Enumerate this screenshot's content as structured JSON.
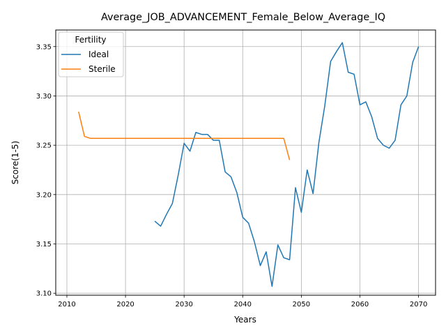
{
  "chart_data": {
    "type": "line",
    "title": "Average_JOB_ADVANCEMENT_Female_Below_Average_IQ",
    "xlabel": "Years",
    "ylabel": "Score(1-5)",
    "xlim": [
      2008.1,
      2072.9
    ],
    "ylim": [
      3.098,
      3.3668
    ],
    "x_ticks": [
      2010,
      2020,
      2030,
      2040,
      2050,
      2060,
      2070
    ],
    "y_ticks": [
      3.1,
      3.15,
      3.2,
      3.25,
      3.3,
      3.35
    ],
    "grid": true,
    "legend": {
      "title": "Fertility",
      "placement": "top-left"
    },
    "series": [
      {
        "name": "Ideal",
        "color": "#1f77b4",
        "x": [
          2025,
          2026,
          2027,
          2028,
          2029,
          2030,
          2031,
          2032,
          2033,
          2034,
          2035,
          2036,
          2037,
          2038,
          2039,
          2040,
          2041,
          2042,
          2043,
          2044,
          2045,
          2046,
          2047,
          2048,
          2049,
          2050,
          2051,
          2052,
          2053,
          2054,
          2055,
          2056,
          2057,
          2058,
          2059,
          2060,
          2061,
          2062,
          2063,
          2064,
          2065,
          2066,
          2067,
          2068,
          2069,
          2070
        ],
        "values": [
          3.173,
          3.168,
          3.18,
          3.191,
          3.22,
          3.252,
          3.244,
          3.263,
          3.261,
          3.261,
          3.255,
          3.255,
          3.223,
          3.218,
          3.202,
          3.177,
          3.171,
          3.152,
          3.128,
          3.142,
          3.107,
          3.149,
          3.136,
          3.134,
          3.207,
          3.182,
          3.225,
          3.201,
          3.253,
          3.29,
          3.335,
          3.345,
          3.354,
          3.324,
          3.322,
          3.291,
          3.294,
          3.279,
          3.257,
          3.25,
          3.247,
          3.255,
          3.291,
          3.3,
          3.334,
          3.35
        ]
      },
      {
        "name": "Sterile",
        "color": "#ff7f0e",
        "x": [
          2012,
          2013,
          2014,
          2015,
          2016,
          2017,
          2018,
          2019,
          2020,
          2021,
          2022,
          2023,
          2024,
          2025,
          2026,
          2027,
          2028,
          2029,
          2030,
          2031,
          2032,
          2033,
          2034,
          2035,
          2036,
          2037,
          2038,
          2039,
          2040,
          2041,
          2042,
          2043,
          2044,
          2045,
          2046,
          2047,
          2048
        ],
        "values": [
          3.284,
          3.259,
          3.257,
          3.257,
          3.257,
          3.257,
          3.257,
          3.257,
          3.257,
          3.257,
          3.257,
          3.257,
          3.257,
          3.257,
          3.257,
          3.257,
          3.257,
          3.257,
          3.257,
          3.257,
          3.257,
          3.257,
          3.257,
          3.257,
          3.257,
          3.257,
          3.257,
          3.257,
          3.257,
          3.257,
          3.257,
          3.257,
          3.257,
          3.257,
          3.257,
          3.257,
          3.235
        ]
      }
    ]
  }
}
